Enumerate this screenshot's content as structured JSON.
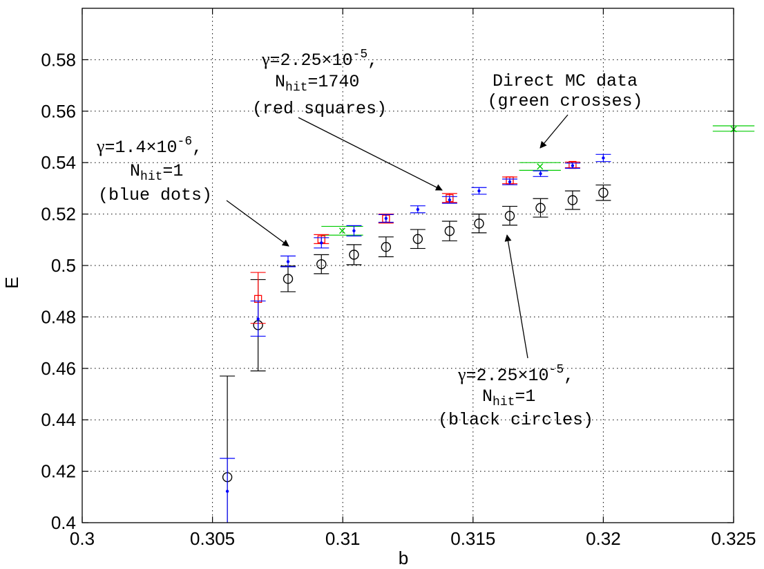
{
  "chart_data": {
    "type": "scatter",
    "xlabel": "b",
    "ylabel": "E",
    "xlim": [
      0.3,
      0.325
    ],
    "ylim": [
      0.4,
      0.6
    ],
    "xticks": [
      0.3,
      0.305,
      0.31,
      0.315,
      0.32,
      0.325
    ],
    "xtick_labels": [
      "0.3",
      "0.305",
      "0.31",
      "0.315",
      "0.32",
      "0.325"
    ],
    "yticks": [
      0.4,
      0.42,
      0.44,
      0.46,
      0.48,
      0.5,
      0.52,
      0.54,
      0.56,
      0.58
    ],
    "ytick_labels": [
      "0.4",
      "0.42",
      "0.44",
      "0.46",
      "0.48",
      "0.5",
      "0.52",
      "0.54",
      "0.56",
      "0.58"
    ],
    "grid": true,
    "series": [
      {
        "marker": "circle",
        "color": "#000000",
        "points": [
          {
            "x": 0.30557,
            "y": 0.4177,
            "lo": 0.3985,
            "hi": 0.457
          },
          {
            "x": 0.30675,
            "y": 0.4768,
            "lo": 0.459,
            "hi": 0.4945
          },
          {
            "x": 0.3079,
            "y": 0.4948,
            "lo": 0.4898,
            "hi": 0.4998
          },
          {
            "x": 0.30918,
            "y": 0.5005,
            "lo": 0.4968,
            "hi": 0.5042
          },
          {
            "x": 0.31043,
            "y": 0.5042,
            "lo": 0.5003,
            "hi": 0.5081
          },
          {
            "x": 0.31166,
            "y": 0.5072,
            "lo": 0.5034,
            "hi": 0.5111
          },
          {
            "x": 0.31288,
            "y": 0.5103,
            "lo": 0.5066,
            "hi": 0.514
          },
          {
            "x": 0.3141,
            "y": 0.5134,
            "lo": 0.5096,
            "hi": 0.5172
          },
          {
            "x": 0.31523,
            "y": 0.5163,
            "lo": 0.5127,
            "hi": 0.52
          },
          {
            "x": 0.31641,
            "y": 0.5193,
            "lo": 0.5157,
            "hi": 0.523
          },
          {
            "x": 0.31759,
            "y": 0.5224,
            "lo": 0.5188,
            "hi": 0.526
          },
          {
            "x": 0.31882,
            "y": 0.5254,
            "lo": 0.5218,
            "hi": 0.529
          },
          {
            "x": 0.32,
            "y": 0.5283,
            "lo": 0.5253,
            "hi": 0.5313
          }
        ]
      },
      {
        "marker": "square",
        "color": "#ff0000",
        "points": [
          {
            "x": 0.30675,
            "y": 0.487,
            "lo": 0.4775,
            "hi": 0.4973
          },
          {
            "x": 0.30918,
            "y": 0.5102,
            "lo": 0.5085,
            "hi": 0.512
          },
          {
            "x": 0.31166,
            "y": 0.5182,
            "lo": 0.5165,
            "hi": 0.52
          },
          {
            "x": 0.3141,
            "y": 0.5262,
            "lo": 0.5245,
            "hi": 0.528
          },
          {
            "x": 0.31641,
            "y": 0.5331,
            "lo": 0.5318,
            "hi": 0.5344
          },
          {
            "x": 0.31882,
            "y": 0.5391,
            "lo": 0.538,
            "hi": 0.5402
          }
        ]
      },
      {
        "marker": "dot",
        "color": "#0000ff",
        "points": [
          {
            "x": 0.30557,
            "y": 0.4122,
            "lo": 0.3985,
            "hi": 0.425
          },
          {
            "x": 0.30675,
            "y": 0.4792,
            "lo": 0.4725,
            "hi": 0.4862
          },
          {
            "x": 0.3079,
            "y": 0.5015,
            "lo": 0.4995,
            "hi": 0.5037
          },
          {
            "x": 0.30918,
            "y": 0.5088,
            "lo": 0.5068,
            "hi": 0.5108
          },
          {
            "x": 0.31043,
            "y": 0.5135,
            "lo": 0.5115,
            "hi": 0.5155
          },
          {
            "x": 0.31166,
            "y": 0.5183,
            "lo": 0.5168,
            "hi": 0.5198
          },
          {
            "x": 0.31288,
            "y": 0.5218,
            "lo": 0.5205,
            "hi": 0.5232
          },
          {
            "x": 0.3141,
            "y": 0.5255,
            "lo": 0.5242,
            "hi": 0.5268
          },
          {
            "x": 0.31523,
            "y": 0.529,
            "lo": 0.5277,
            "hi": 0.5303
          },
          {
            "x": 0.31641,
            "y": 0.5325,
            "lo": 0.5314,
            "hi": 0.5336
          },
          {
            "x": 0.31759,
            "y": 0.5357,
            "lo": 0.5346,
            "hi": 0.5368
          },
          {
            "x": 0.31882,
            "y": 0.5388,
            "lo": 0.5378,
            "hi": 0.5398
          },
          {
            "x": 0.32,
            "y": 0.5418,
            "lo": 0.5404,
            "hi": 0.5432
          }
        ]
      },
      {
        "marker": "cross",
        "color": "#00cc00",
        "points": [
          {
            "x": 0.30998,
            "y": 0.5135,
            "lo": 0.5118,
            "hi": 0.5152,
            "cap_width": 0.0016
          },
          {
            "x": 0.31757,
            "y": 0.5385,
            "lo": 0.537,
            "hi": 0.54,
            "cap_width": 0.0016
          },
          {
            "x": 0.325,
            "y": 0.553,
            "lo": 0.5522,
            "hi": 0.5543,
            "cap_width": 0.0016
          }
        ]
      }
    ],
    "annotations": [
      {
        "lines": [
          "γ=2.25×10^-5,",
          "N_hit=1740",
          "(red squares)"
        ],
        "arrow_to": {
          "x": 0.3141,
          "y": 0.5262
        }
      },
      {
        "lines": [
          "Direct MC data",
          "(green crosses)"
        ],
        "arrow_to": {
          "x": 0.31757,
          "y": 0.5385
        }
      },
      {
        "lines": [
          "γ=1.4×10^-6,",
          "N_hit=1",
          "(blue dots)"
        ],
        "arrow_to": {
          "x": 0.3079,
          "y": 0.5015
        }
      },
      {
        "lines": [
          "γ=2.25×10^-5,",
          "N_hit=1",
          "(black circles)"
        ],
        "arrow_to": {
          "x": 0.31641,
          "y": 0.5193
        }
      }
    ]
  },
  "text": {
    "ann_red_gamma_sym": "γ",
    "ann_red_gamma_val": "=2.25×10",
    "ann_red_gamma_exp": "-5",
    "ann_red_comma": ",",
    "ann_red_nhit_N": "N",
    "ann_red_nhit_sub": "hit",
    "ann_red_nhit_val": "=1740",
    "ann_red_desc": "(red squares)",
    "ann_green_l1": "Direct MC data",
    "ann_green_l2": "(green crosses)",
    "ann_blue_gamma_sym": "γ",
    "ann_blue_gamma_val": "=1.4×10",
    "ann_blue_gamma_exp": "-6",
    "ann_blue_comma": ",",
    "ann_blue_nhit_N": "N",
    "ann_blue_nhit_sub": "hit",
    "ann_blue_nhit_val": "=1",
    "ann_blue_desc": "(blue dots)",
    "ann_black_gamma_sym": "γ",
    "ann_black_gamma_val": "=2.25×10",
    "ann_black_gamma_exp": "-5",
    "ann_black_comma": ",",
    "ann_black_nhit_N": "N",
    "ann_black_nhit_sub": "hit",
    "ann_black_nhit_val": "=1",
    "ann_black_desc": "(black circles)"
  }
}
